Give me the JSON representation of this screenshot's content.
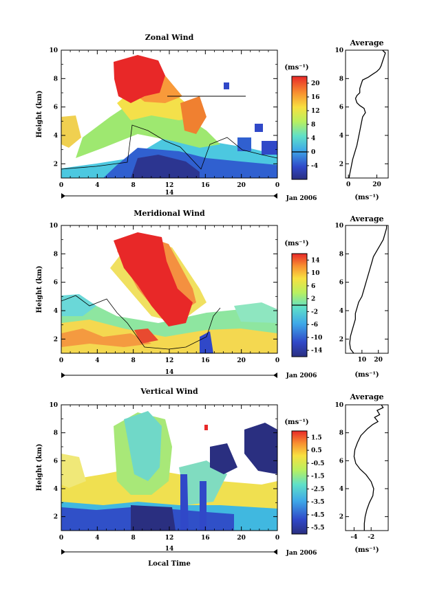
{
  "chart_data": [
    {
      "type": "heatmap",
      "title": "Zonal Wind",
      "ylabel": "Height (km)",
      "xlabel": "",
      "xlim": [
        0,
        24
      ],
      "ylim": [
        1,
        10
      ],
      "x_ticks": [
        "0",
        "4",
        "8",
        "12",
        "16",
        "20",
        "0"
      ],
      "x_tick_values": [
        0,
        4,
        8,
        12,
        16,
        20,
        24
      ],
      "y_ticks": [
        "2",
        "4",
        "6",
        "8",
        "10"
      ],
      "y_tick_values": [
        2,
        4,
        6,
        8,
        10
      ],
      "date_marker": "14",
      "date_label": "Jan 2006",
      "colorbar": {
        "unit": "(ms⁻¹)",
        "labels": [
          "20",
          "16",
          "12",
          "8",
          "4",
          "0",
          "-4"
        ],
        "label_values": [
          20,
          16,
          12,
          8,
          4,
          0,
          -4
        ],
        "range": [
          -8,
          22
        ],
        "zero_line": 0
      },
      "profile": {
        "title": "Average",
        "xlabel": "(ms⁻¹)",
        "x_ticks": [
          "0",
          "20"
        ],
        "x_tick_values": [
          0,
          20
        ],
        "xlim": [
          -2,
          28
        ],
        "y_ticks": [
          "2",
          "4",
          "6",
          "8",
          "10"
        ],
        "y_tick_values": [
          2,
          4,
          6,
          8,
          10
        ],
        "points": [
          [
            0.5,
            1.0
          ],
          [
            1,
            1.3
          ],
          [
            2,
            1.8
          ],
          [
            3,
            2.3
          ],
          [
            4.5,
            2.8
          ],
          [
            6,
            3.3
          ],
          [
            7,
            3.8
          ],
          [
            8,
            4.3
          ],
          [
            9,
            4.8
          ],
          [
            10,
            5.3
          ],
          [
            12,
            5.6
          ],
          [
            11,
            5.9
          ],
          [
            8,
            6.1
          ],
          [
            6,
            6.3
          ],
          [
            5,
            6.6
          ],
          [
            6,
            6.8
          ],
          [
            8,
            7.0
          ],
          [
            8,
            7.3
          ],
          [
            9,
            7.6
          ],
          [
            10,
            7.9
          ],
          [
            14,
            8.1
          ],
          [
            17,
            8.3
          ],
          [
            20,
            8.5
          ],
          [
            22,
            8.7
          ],
          [
            23,
            8.9
          ],
          [
            24,
            9.2
          ],
          [
            25,
            9.5
          ],
          [
            26,
            9.8
          ],
          [
            24,
            10.0
          ]
        ]
      }
    },
    {
      "type": "heatmap",
      "title": "Meridional Wind",
      "ylabel": "Height (km)",
      "xlabel": "",
      "xlim": [
        0,
        24
      ],
      "ylim": [
        1,
        10
      ],
      "x_ticks": [
        "0",
        "4",
        "8",
        "12",
        "16",
        "20",
        "0"
      ],
      "x_tick_values": [
        0,
        4,
        8,
        12,
        16,
        20,
        24
      ],
      "y_ticks": [
        "2",
        "4",
        "6",
        "8",
        "10"
      ],
      "y_tick_values": [
        2,
        4,
        6,
        8,
        10
      ],
      "date_marker": "14",
      "date_label": "Jan 2006",
      "colorbar": {
        "unit": "(ms⁻¹)",
        "labels": [
          "14",
          "10",
          "6",
          "2",
          "-2",
          "-6",
          "-10",
          "-14"
        ],
        "label_values": [
          14,
          10,
          6,
          2,
          -2,
          -6,
          -10,
          -14
        ],
        "range": [
          -16,
          16
        ],
        "zero_line": 0
      },
      "profile": {
        "title": "Average",
        "xlabel": "(ms⁻¹)",
        "x_ticks": [
          "10",
          "20"
        ],
        "x_tick_values": [
          10,
          20
        ],
        "xlim": [
          0,
          26
        ],
        "y_ticks": [
          "2",
          "4",
          "6",
          "8",
          "10"
        ],
        "y_tick_values": [
          2,
          4,
          6,
          8,
          10
        ],
        "points": [
          [
            5,
            1.0
          ],
          [
            3,
            1.3
          ],
          [
            2.5,
            1.7
          ],
          [
            3,
            2.2
          ],
          [
            4,
            2.6
          ],
          [
            5,
            3.0
          ],
          [
            6,
            3.4
          ],
          [
            6,
            3.8
          ],
          [
            7,
            4.2
          ],
          [
            8,
            4.6
          ],
          [
            10,
            5.0
          ],
          [
            11,
            5.4
          ],
          [
            12,
            5.8
          ],
          [
            13,
            6.2
          ],
          [
            14,
            6.6
          ],
          [
            15,
            7.0
          ],
          [
            16,
            7.4
          ],
          [
            17,
            7.8
          ],
          [
            19,
            8.2
          ],
          [
            21,
            8.6
          ],
          [
            23,
            9.0
          ],
          [
            24,
            9.4
          ],
          [
            25,
            9.8
          ],
          [
            25,
            10.0
          ]
        ]
      }
    },
    {
      "type": "heatmap",
      "title": "Vertical Wind",
      "ylabel": "Height (km)",
      "xlabel": "Local Time",
      "xlim": [
        0,
        24
      ],
      "ylim": [
        1,
        10
      ],
      "x_ticks": [
        "0",
        "4",
        "8",
        "12",
        "16",
        "20",
        "0"
      ],
      "x_tick_values": [
        0,
        4,
        8,
        12,
        16,
        20,
        24
      ],
      "y_ticks": [
        "2",
        "4",
        "6",
        "8",
        "10"
      ],
      "y_tick_values": [
        2,
        4,
        6,
        8,
        10
      ],
      "date_marker": "14",
      "date_label": "Jan 2006",
      "colorbar": {
        "unit": "(ms⁻¹)",
        "labels": [
          "1.5",
          "0.5",
          "-0.5",
          "-1.5",
          "-2.5",
          "-3.5",
          "-4.5",
          "-5.5"
        ],
        "label_values": [
          1.5,
          0.5,
          -0.5,
          -1.5,
          -2.5,
          -3.5,
          -4.5,
          -5.5
        ],
        "range": [
          -6,
          2
        ],
        "zero_line": null
      },
      "profile": {
        "title": "Average",
        "xlabel": "(ms⁻¹)",
        "x_ticks": [
          "-4",
          "-2"
        ],
        "x_tick_values": [
          -4,
          -2
        ],
        "xlim": [
          -5,
          0
        ],
        "y_ticks": [
          "2",
          "4",
          "6",
          "8",
          "10"
        ],
        "y_tick_values": [
          2,
          4,
          6,
          8,
          10
        ],
        "points": [
          [
            -2.8,
            1.0
          ],
          [
            -2.8,
            1.5
          ],
          [
            -2.7,
            2.0
          ],
          [
            -2.5,
            2.5
          ],
          [
            -2.2,
            3.0
          ],
          [
            -1.8,
            3.5
          ],
          [
            -1.7,
            4.0
          ],
          [
            -2.0,
            4.5
          ],
          [
            -2.6,
            5.0
          ],
          [
            -3.3,
            5.4
          ],
          [
            -3.8,
            5.8
          ],
          [
            -4.0,
            6.3
          ],
          [
            -3.9,
            6.8
          ],
          [
            -3.6,
            7.3
          ],
          [
            -3.2,
            7.8
          ],
          [
            -2.4,
            8.3
          ],
          [
            -1.8,
            8.6
          ],
          [
            -1.2,
            8.8
          ],
          [
            -1.6,
            9.1
          ],
          [
            -1.0,
            9.3
          ],
          [
            -1.3,
            9.6
          ],
          [
            -0.6,
            9.8
          ],
          [
            -0.8,
            10.0
          ]
        ]
      }
    }
  ]
}
